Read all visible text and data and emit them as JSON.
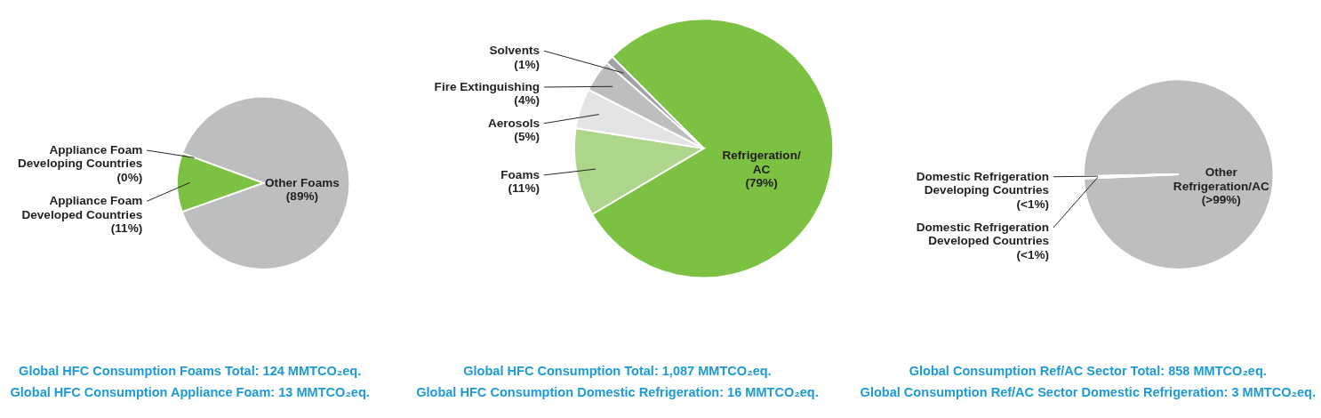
{
  "chart_data": [
    {
      "type": "pie",
      "categories": [
        "Other Foams",
        "Appliance Foam\nDeveloped Countries",
        "Appliance Foam\nDeveloping Countries"
      ],
      "values": [
        89,
        11,
        0
      ],
      "colors": [
        "#bcbec0",
        "#7dc142",
        "#5a9e2f"
      ],
      "value_labels": [
        "(89%)",
        "(11%)",
        "(0%)"
      ],
      "annotations": [
        "Global HFC Consumption Foams Total: 124 MMTCO₂eq.",
        "Global HFC Consumption Appliance Foam: 13 MMTCO₂eq."
      ]
    },
    {
      "type": "pie",
      "categories": [
        "Refrigeration/\nAC",
        "Foams",
        "Aerosols",
        "Fire Extinguishing",
        "Solvents"
      ],
      "values": [
        79,
        11,
        5,
        4,
        1
      ],
      "colors": [
        "#7dc142",
        "#aed68a",
        "#e2e3e4",
        "#bcbec0",
        "#a0a2a5"
      ],
      "value_labels": [
        "(79%)",
        "(11%)",
        "(5%)",
        "(4%)",
        "(1%)"
      ],
      "annotations": [
        "Global HFC Consumption Total: 1,087 MMTCO₂eq.",
        "Global HFC Consumption Domestic Refrigeration: 16 MMTCO₂eq."
      ]
    },
    {
      "type": "pie",
      "categories": [
        "Other\nRefrigeration/AC",
        "Domestic Refrigeration\nDeveloped Countries",
        "Domestic Refrigeration\nDeveloping Countries"
      ],
      "values": [
        99.6,
        0.3,
        0.1
      ],
      "colors": [
        "#bcbec0",
        "#7dc142",
        "#5a9e2f"
      ],
      "value_labels": [
        "(>99%)",
        "(<1%)",
        "(<1%)"
      ],
      "annotations": [
        "Global Consumption Ref/AC Sector Total: 858 MMTCO₂eq.",
        "Global Consumption Ref/AC Sector Domestic Refrigeration: 3 MMTCO₂eq."
      ]
    }
  ]
}
